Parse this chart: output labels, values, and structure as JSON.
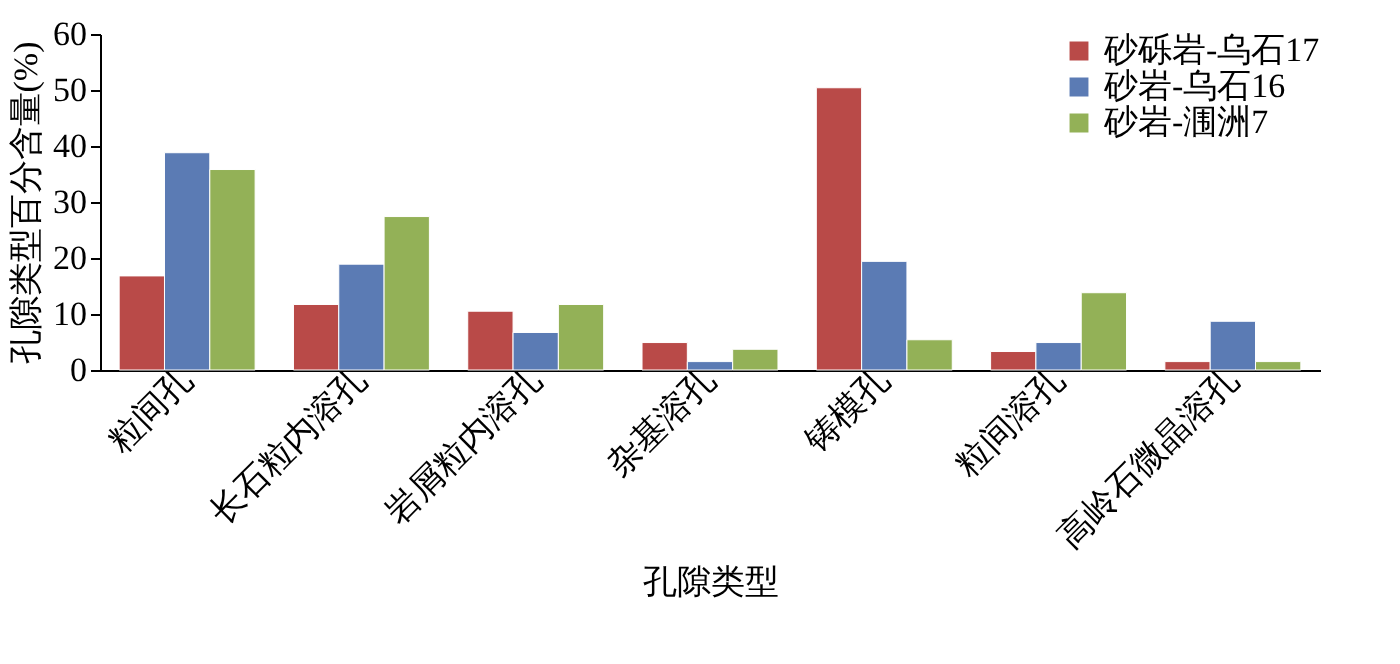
{
  "chart_data": {
    "type": "bar",
    "xlabel": "孔隙类型",
    "ylabel": "孔隙类型百分含量(%)",
    "categories": [
      "粒间孔",
      "长石粒内溶孔",
      "岩屑粒内溶孔",
      "杂基溶孔",
      "铸模孔",
      "粒间溶孔",
      "高岭石微晶溶孔"
    ],
    "series": [
      {
        "name": "砂砾岩-乌石17",
        "color": "#b94a48",
        "values": [
          16.8,
          11.7,
          10.5,
          4.9,
          50.4,
          3.3,
          1.5
        ]
      },
      {
        "name": "砂岩-乌石16",
        "color": "#5b7bb4",
        "values": [
          38.8,
          18.9,
          6.7,
          1.5,
          19.4,
          4.9,
          8.7
        ]
      },
      {
        "name": "砂岩-涠洲7",
        "color": "#93b157",
        "values": [
          35.8,
          27.4,
          11.7,
          3.7,
          5.4,
          13.8,
          1.5
        ]
      }
    ],
    "ylim": [
      0,
      60
    ],
    "yticks": [
      0,
      10,
      20,
      30,
      40,
      50,
      60
    ],
    "grid": false,
    "legend": "top right"
  }
}
